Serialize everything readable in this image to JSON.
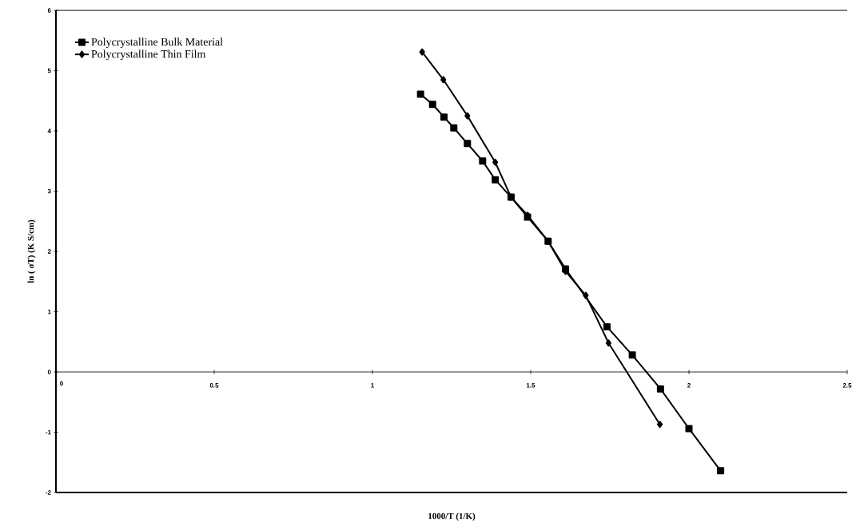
{
  "chart_data": {
    "type": "line",
    "xlabel": "1000/T (1/K)",
    "ylabel": "ln ( σT) (K S/cm)",
    "xlim": [
      0,
      2.5
    ],
    "xticks": [
      0,
      0.5,
      1,
      1.5,
      2,
      2.5
    ],
    "ylim": [
      -2,
      6
    ],
    "yticks": [
      -2,
      -1,
      0,
      1,
      2,
      3,
      4,
      5,
      6
    ],
    "legend": "top left",
    "grid": false,
    "line_style": "solid",
    "series": [
      {
        "name": "Polycrystalline Bulk Material",
        "color": "#000000",
        "marker": "square",
        "x": [
          1.152,
          1.19,
          1.226,
          1.257,
          1.3,
          1.348,
          1.388,
          1.438,
          1.49,
          1.555,
          1.61,
          1.741,
          1.821,
          1.91,
          2.0,
          2.1
        ],
        "values": [
          4.61,
          4.44,
          4.23,
          4.05,
          3.79,
          3.5,
          3.19,
          2.9,
          2.57,
          2.17,
          1.71,
          0.75,
          0.28,
          -0.28,
          -0.94,
          -1.64
        ]
      },
      {
        "name": "Polycrystalline Thin Film",
        "color": "#000000",
        "marker": "diamond",
        "x": [
          1.157,
          1.224,
          1.3,
          1.388,
          1.438,
          1.49,
          1.555,
          1.61,
          1.674,
          1.746,
          1.908
        ],
        "values": [
          5.31,
          4.85,
          4.25,
          3.48,
          2.9,
          2.6,
          2.17,
          1.67,
          1.27,
          0.48,
          -0.87
        ]
      }
    ]
  }
}
